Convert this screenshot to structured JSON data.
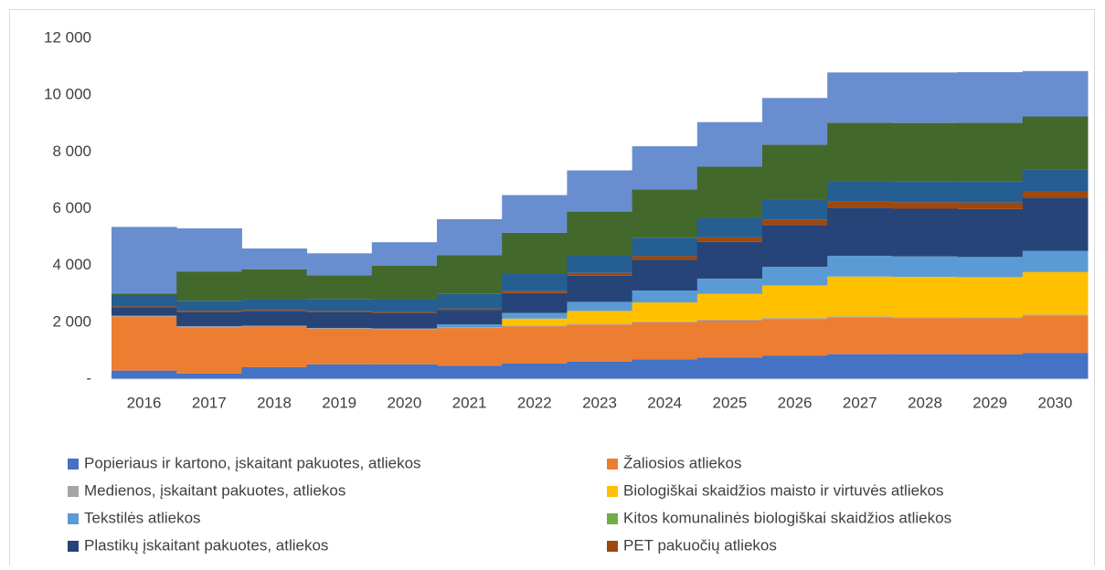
{
  "chart_data": {
    "type": "stacked_bar",
    "categories": [
      "2016",
      "2017",
      "2018",
      "2019",
      "2020",
      "2021",
      "2022",
      "2023",
      "2024",
      "2025",
      "2026",
      "2027",
      "2028",
      "2029",
      "2030"
    ],
    "ylim": [
      0,
      12000
    ],
    "yticks": [
      {
        "value": 0,
        "label": "-"
      },
      {
        "value": 2000,
        "label": "2 000"
      },
      {
        "value": 4000,
        "label": "4 000"
      },
      {
        "value": 6000,
        "label": "6 000"
      },
      {
        "value": 8000,
        "label": "8 000"
      },
      {
        "value": 10000,
        "label": "10 000"
      },
      {
        "value": 12000,
        "label": "12 000"
      }
    ],
    "series": [
      {
        "name": "Popieriaus ir kartono, įskaitant pakuotes, atliekos",
        "color": "#4472c4",
        "values": [
          300,
          200,
          420,
          520,
          520,
          470,
          550,
          620,
          700,
          760,
          820,
          880,
          880,
          870,
          920
        ]
      },
      {
        "name": "Žaliosios atliekos",
        "color": "#ed7d31",
        "values": [
          1900,
          1630,
          1430,
          1250,
          1230,
          1330,
          1300,
          1300,
          1300,
          1300,
          1300,
          1300,
          1270,
          1270,
          1320
        ]
      },
      {
        "name": "Medienos, įskaitant pakuotes, atliekos",
        "color": "#a5a5a5",
        "values": [
          30,
          30,
          30,
          30,
          30,
          30,
          30,
          30,
          30,
          30,
          30,
          30,
          30,
          30,
          30
        ]
      },
      {
        "name": "Biologiškai skaidžios maisto ir virtuvės atliekos",
        "color": "#ffc000",
        "values": [
          0,
          0,
          0,
          0,
          0,
          0,
          250,
          450,
          670,
          910,
          1150,
          1400,
          1420,
          1420,
          1500
        ]
      },
      {
        "name": "Tekstilės atliekos",
        "color": "#5b9bd5",
        "values": [
          0,
          0,
          0,
          0,
          0,
          100,
          200,
          320,
          420,
          540,
          650,
          730,
          720,
          710,
          750
        ]
      },
      {
        "name": "Kitos komunalinės biologiškai skaidžios atliekos",
        "color": "#70ad47",
        "values": [
          0,
          0,
          0,
          0,
          0,
          0,
          0,
          0,
          0,
          0,
          0,
          0,
          0,
          0,
          0
        ]
      },
      {
        "name": "Plastikų įskaitant pakuotes, atliekos",
        "color": "#264478",
        "values": [
          300,
          500,
          500,
          560,
          560,
          500,
          700,
          920,
          1080,
          1290,
          1480,
          1700,
          1680,
          1690,
          1850
        ]
      },
      {
        "name": "PET pakuočių atliekos",
        "color": "#9e480e",
        "values": [
          30,
          50,
          40,
          40,
          40,
          50,
          70,
          100,
          130,
          160,
          190,
          220,
          230,
          230,
          240
        ]
      },
      {
        "color": "#255e91",
        "values": [
          400,
          350,
          380,
          420,
          420,
          520,
          600,
          620,
          650,
          690,
          700,
          720,
          730,
          750,
          770
        ]
      },
      {
        "color": "#43682b",
        "values": [
          50,
          1020,
          1070,
          830,
          1200,
          1360,
          1450,
          1540,
          1700,
          1800,
          1930,
          2050,
          2060,
          2060,
          1870
        ]
      },
      {
        "color": "#698ed0",
        "values": [
          2350,
          1530,
          730,
          780,
          820,
          1270,
          1330,
          1450,
          1520,
          1570,
          1650,
          1770,
          1780,
          1780,
          1600
        ]
      }
    ]
  }
}
